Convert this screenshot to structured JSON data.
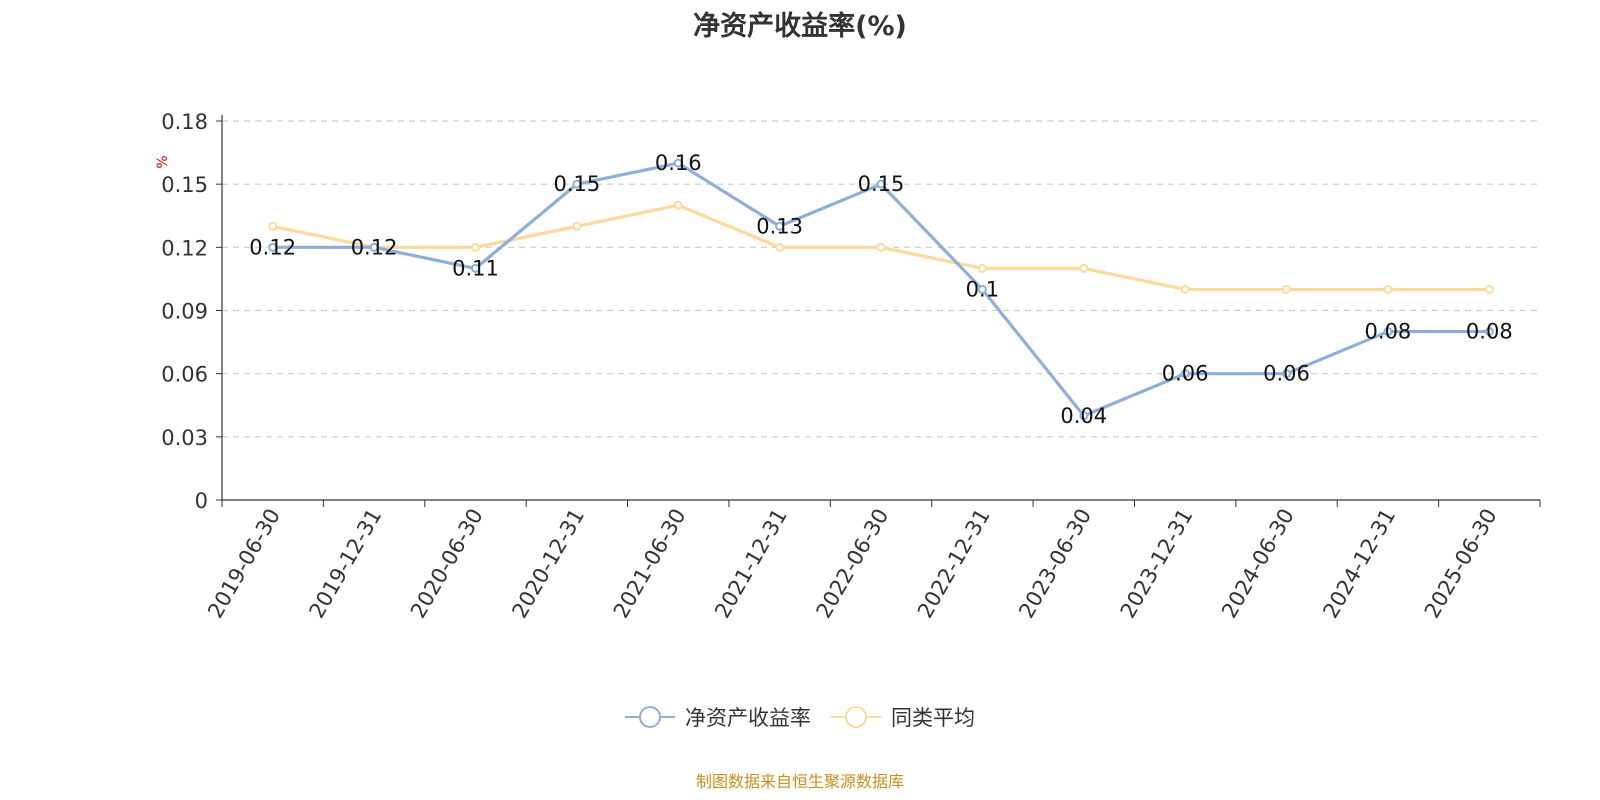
{
  "chart_data": {
    "type": "line",
    "title": "净资产收益率(%)",
    "ylabel": "%",
    "xlabel": "",
    "ylim": [
      0,
      0.18
    ],
    "yticks": [
      "0",
      "0.03",
      "0.06",
      "0.09",
      "0.12",
      "0.15",
      "0.18"
    ],
    "categories": [
      "2019-06-30",
      "2019-12-31",
      "2020-06-30",
      "2020-12-31",
      "2021-06-30",
      "2021-12-31",
      "2022-06-30",
      "2022-12-31",
      "2023-06-30",
      "2023-12-31",
      "2024-06-30",
      "2024-12-31",
      "2025-06-30"
    ],
    "series": [
      {
        "name": "净资产收益率",
        "color": "#8eaedb",
        "values": [
          0.12,
          0.12,
          0.11,
          0.15,
          0.16,
          0.13,
          0.15,
          0.1,
          0.04,
          0.06,
          0.06,
          0.08,
          0.08
        ],
        "labels": [
          "0.12",
          "0.12",
          "0.11",
          "0.15",
          "0.16",
          "0.13",
          "0.15",
          "0.1",
          "0.04",
          "0.06",
          "0.06",
          "0.08",
          "0.08"
        ]
      },
      {
        "name": "同类平均",
        "color": "#fdd99a",
        "values": [
          0.13,
          0.12,
          0.12,
          0.13,
          0.14,
          0.12,
          0.12,
          0.11,
          0.11,
          0.1,
          0.1,
          0.1,
          0.1
        ]
      }
    ],
    "grid": true,
    "legend_position": "bottom-center"
  },
  "source_note": "制图数据来自恒生聚源数据库"
}
